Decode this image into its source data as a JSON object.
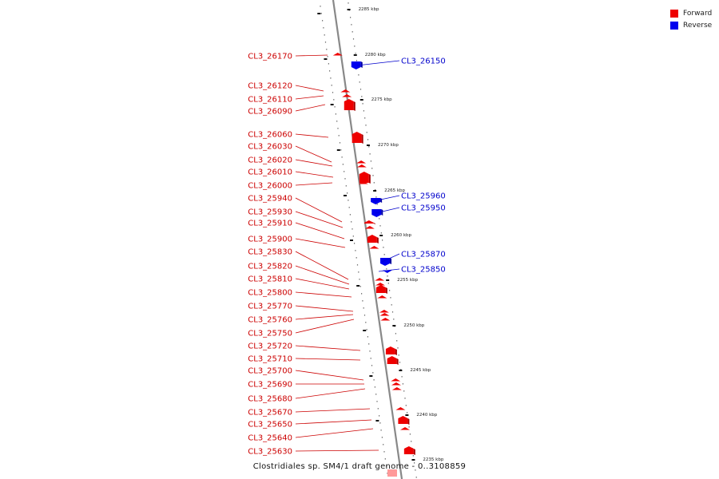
{
  "colors": {
    "forward": "#ee0000",
    "reverse": "#0000ee",
    "backbone": "#888888",
    "label_forward": "#cc0000",
    "label_reverse": "#0000cc"
  },
  "legend": [
    {
      "label": "Forward",
      "color": "#ee0000"
    },
    {
      "label": "Reverse",
      "color": "#0000ee"
    }
  ],
  "footer": {
    "title": "Clostridiales sp. SM4/1 draft genome - 0..3108859"
  },
  "ruler_ticks": [
    "2285 kbp",
    "2280 kbp",
    "2275 kbp",
    "2270 kbp",
    "2265 kbp",
    "2260 kbp",
    "2255 kbp",
    "2250 kbp",
    "2245 kbp",
    "2240 kbp",
    "2235 kbp"
  ],
  "forward_genes": [
    "CL3_26170",
    "CL3_26120",
    "CL3_26110",
    "CL3_26090",
    "CL3_26060",
    "CL3_26030",
    "CL3_26020",
    "CL3_26010",
    "CL3_26000",
    "CL3_25940",
    "CL3_25930",
    "CL3_25910",
    "CL3_25900",
    "CL3_25830",
    "CL3_25820",
    "CL3_25810",
    "CL3_25800",
    "CL3_25770",
    "CL3_25760",
    "CL3_25750",
    "CL3_25720",
    "CL3_25710",
    "CL3_25700",
    "CL3_25690",
    "CL3_25680",
    "CL3_25670",
    "CL3_25650",
    "CL3_25640",
    "CL3_25630"
  ],
  "reverse_genes": [
    "CL3_26150",
    "CL3_25960",
    "CL3_25950",
    "CL3_25870",
    "CL3_25850"
  ]
}
